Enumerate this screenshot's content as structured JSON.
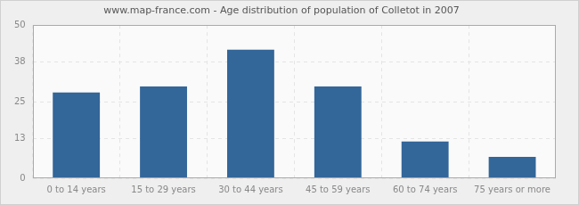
{
  "chart_data": {
    "type": "bar",
    "title": "www.map-france.com - Age distribution of population of Colletot in 2007",
    "categories": [
      "0 to 14 years",
      "15 to 29 years",
      "30 to 44 years",
      "45 to 59 years",
      "60 to 74 years",
      "75 years or more"
    ],
    "values": [
      28,
      30,
      42,
      30,
      12,
      7
    ],
    "color": "#336699",
    "ylim": [
      0,
      50
    ],
    "yticks": [
      0,
      13,
      25,
      38,
      50
    ],
    "grid": true
  }
}
